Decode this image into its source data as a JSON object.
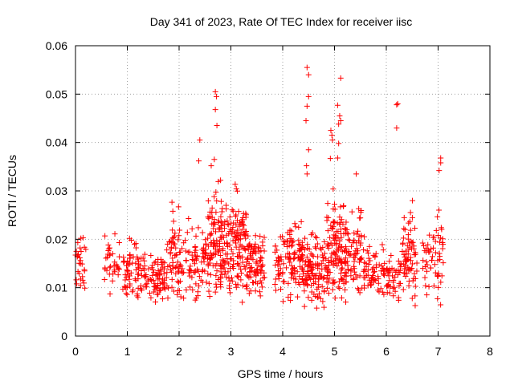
{
  "chart_data": {
    "type": "scatter",
    "title": "Day 341 of 2023, Rate Of TEC Index for receiver iisc",
    "xlabel": "GPS time / hours",
    "ylabel": "ROTI / TECUs",
    "xlim": [
      0,
      8
    ],
    "ylim": [
      0,
      0.06
    ],
    "x_ticks": [
      "0",
      "1",
      "2",
      "3",
      "4",
      "5",
      "6",
      "7",
      "8"
    ],
    "y_ticks": [
      "0",
      "0.01",
      "0.02",
      "0.03",
      "0.04",
      "0.05",
      "0.06"
    ],
    "grid": true,
    "marker": "plus",
    "color": "#ff0000",
    "clusters": [
      {
        "x": [
          0.0,
          0.2
        ],
        "y": [
          0.006,
          0.024
        ],
        "n": 30
      },
      {
        "x": [
          0.55,
          0.95
        ],
        "y": [
          0.007,
          0.025
        ],
        "n": 40
      },
      {
        "x": [
          0.95,
          1.35
        ],
        "y": [
          0.006,
          0.022
        ],
        "n": 70
      },
      {
        "x": [
          1.35,
          1.75
        ],
        "y": [
          0.006,
          0.019
        ],
        "n": 70
      },
      {
        "x": [
          1.75,
          2.2
        ],
        "y": [
          0.006,
          0.029
        ],
        "n": 80
      },
      {
        "x": [
          2.2,
          2.55
        ],
        "y": [
          0.006,
          0.026
        ],
        "n": 60
      },
      {
        "x": [
          2.55,
          2.95
        ],
        "y": [
          0.005,
          0.035
        ],
        "n": 130
      },
      {
        "x": [
          2.95,
          3.3
        ],
        "y": [
          0.006,
          0.033
        ],
        "n": 110
      },
      {
        "x": [
          3.3,
          3.65
        ],
        "y": [
          0.006,
          0.028
        ],
        "n": 90
      },
      {
        "x": [
          3.85,
          4.2
        ],
        "y": [
          0.005,
          0.027
        ],
        "n": 70
      },
      {
        "x": [
          4.2,
          4.55
        ],
        "y": [
          0.004,
          0.028
        ],
        "n": 90
      },
      {
        "x": [
          4.55,
          4.85
        ],
        "y": [
          0.004,
          0.025
        ],
        "n": 70
      },
      {
        "x": [
          4.85,
          5.25
        ],
        "y": [
          0.005,
          0.032
        ],
        "n": 140
      },
      {
        "x": [
          5.25,
          5.55
        ],
        "y": [
          0.006,
          0.028
        ],
        "n": 60
      },
      {
        "x": [
          5.55,
          5.95
        ],
        "y": [
          0.006,
          0.022
        ],
        "n": 60
      },
      {
        "x": [
          5.95,
          6.3
        ],
        "y": [
          0.006,
          0.02
        ],
        "n": 50
      },
      {
        "x": [
          6.3,
          6.6
        ],
        "y": [
          0.003,
          0.033
        ],
        "n": 70
      },
      {
        "x": [
          6.7,
          7.1
        ],
        "y": [
          0.004,
          0.03
        ],
        "n": 60
      }
    ],
    "outliers": [
      {
        "x": 2.4,
        "y": 0.0405
      },
      {
        "x": 2.38,
        "y": 0.0362
      },
      {
        "x": 2.7,
        "y": 0.0505
      },
      {
        "x": 2.72,
        "y": 0.0495
      },
      {
        "x": 2.7,
        "y": 0.0468
      },
      {
        "x": 2.73,
        "y": 0.0435
      },
      {
        "x": 2.62,
        "y": 0.0352
      },
      {
        "x": 2.68,
        "y": 0.0365
      },
      {
        "x": 2.8,
        "y": 0.0322
      },
      {
        "x": 4.47,
        "y": 0.0555
      },
      {
        "x": 4.5,
        "y": 0.054
      },
      {
        "x": 4.5,
        "y": 0.0495
      },
      {
        "x": 4.47,
        "y": 0.0475
      },
      {
        "x": 4.45,
        "y": 0.0445
      },
      {
        "x": 4.5,
        "y": 0.0385
      },
      {
        "x": 4.46,
        "y": 0.0352
      },
      {
        "x": 4.47,
        "y": 0.0335
      },
      {
        "x": 5.12,
        "y": 0.0533
      },
      {
        "x": 5.06,
        "y": 0.0477
      },
      {
        "x": 5.1,
        "y": 0.0455
      },
      {
        "x": 5.12,
        "y": 0.0445
      },
      {
        "x": 5.08,
        "y": 0.0438
      },
      {
        "x": 4.93,
        "y": 0.0425
      },
      {
        "x": 4.95,
        "y": 0.0415
      },
      {
        "x": 4.96,
        "y": 0.0405
      },
      {
        "x": 5.08,
        "y": 0.0398
      },
      {
        "x": 4.92,
        "y": 0.0367
      },
      {
        "x": 5.06,
        "y": 0.0368
      },
      {
        "x": 6.22,
        "y": 0.048
      },
      {
        "x": 6.2,
        "y": 0.0478
      },
      {
        "x": 6.2,
        "y": 0.043
      },
      {
        "x": 7.05,
        "y": 0.0368
      },
      {
        "x": 7.05,
        "y": 0.0358
      },
      {
        "x": 7.02,
        "y": 0.0342
      },
      {
        "x": 5.42,
        "y": 0.0335
      }
    ]
  }
}
